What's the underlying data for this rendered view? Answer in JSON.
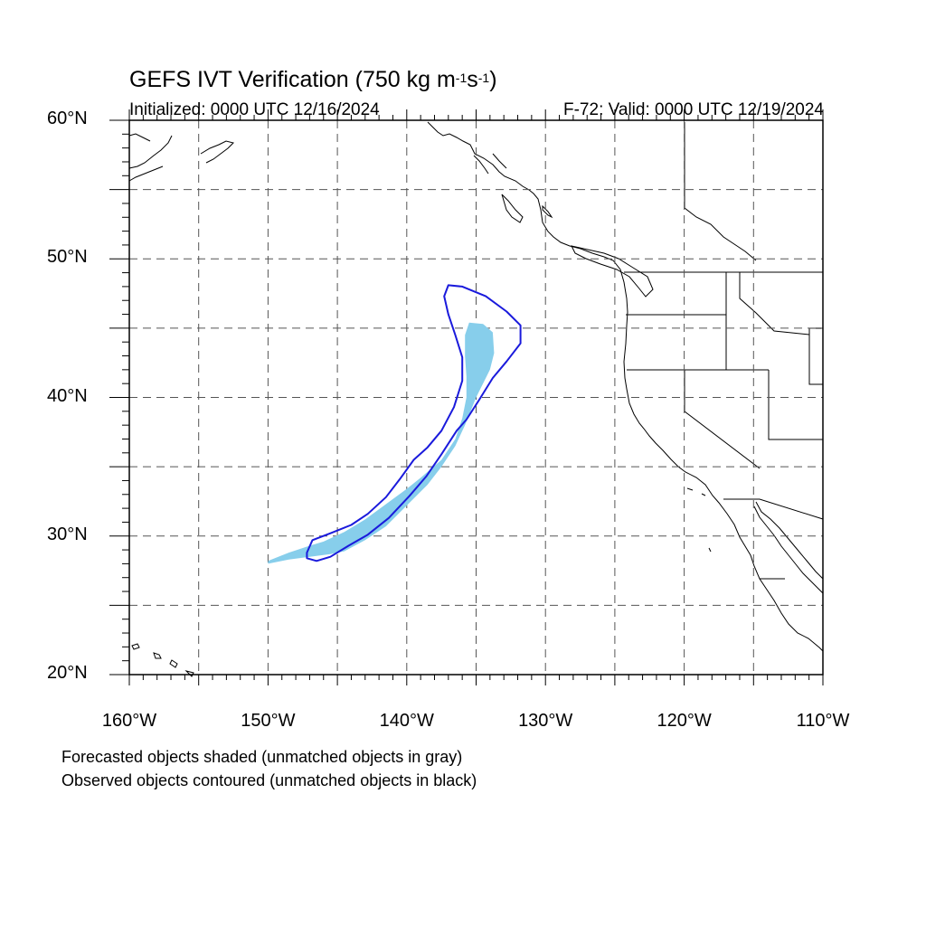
{
  "title": {
    "main": "GEFS IVT Verification (750 kg m",
    "sup1": "-1",
    "mid": "s",
    "sup2": "-1",
    "end": ")"
  },
  "subtitle": {
    "left": "Initialized: 0000 UTC 12/16/2024",
    "right": "F-72: Valid: 0000 UTC 12/19/2024"
  },
  "map": {
    "lon_range": [
      -160,
      -110
    ],
    "lat_range": [
      20,
      60
    ],
    "gridline_style": "dashed",
    "lat_labels": [
      {
        "lat": 60,
        "text": "60°N"
      },
      {
        "lat": 50,
        "text": "50°N"
      },
      {
        "lat": 40,
        "text": "40°N"
      },
      {
        "lat": 30,
        "text": "30°N"
      },
      {
        "lat": 20,
        "text": "20°N"
      }
    ],
    "lon_labels": [
      {
        "lon": -160,
        "text": "160°W"
      },
      {
        "lon": -150,
        "text": "150°W"
      },
      {
        "lon": -140,
        "text": "140°W"
      },
      {
        "lon": -130,
        "text": "130°W"
      },
      {
        "lon": -120,
        "text": "120°W"
      },
      {
        "lon": -110,
        "text": "110°W"
      }
    ],
    "colors": {
      "forecast_fill": "#87ceeb",
      "observed_contour": "#1a1adc",
      "coastline": "#000000"
    },
    "forecast_object": [
      [
        -150.0,
        28.2
      ],
      [
        -148.5,
        28.8
      ],
      [
        -147.0,
        29.3
      ],
      [
        -146.0,
        29.6
      ],
      [
        -144.5,
        30.3
      ],
      [
        -143.0,
        31.2
      ],
      [
        -141.5,
        32.3
      ],
      [
        -140.0,
        33.4
      ],
      [
        -139.0,
        34.2
      ],
      [
        -137.5,
        35.5
      ],
      [
        -136.5,
        37.0
      ],
      [
        -136.0,
        38.5
      ],
      [
        -135.7,
        40.0
      ],
      [
        -135.7,
        41.5
      ],
      [
        -135.8,
        43.0
      ],
      [
        -135.8,
        44.5
      ],
      [
        -135.5,
        45.4
      ],
      [
        -134.5,
        45.3
      ],
      [
        -133.8,
        44.7
      ],
      [
        -133.7,
        43.2
      ],
      [
        -134.0,
        42.0
      ],
      [
        -135.0,
        40.0
      ],
      [
        -135.8,
        38.0
      ],
      [
        -136.5,
        36.5
      ],
      [
        -137.5,
        35.0
      ],
      [
        -138.5,
        33.7
      ],
      [
        -140.0,
        32.2
      ],
      [
        -141.5,
        30.7
      ],
      [
        -143.0,
        29.7
      ],
      [
        -144.5,
        28.9
      ],
      [
        -145.5,
        28.7
      ],
      [
        -147.0,
        28.5
      ],
      [
        -148.5,
        28.3
      ],
      [
        -150.0,
        28.0
      ]
    ],
    "observed_object": [
      [
        -147.2,
        28.8
      ],
      [
        -146.8,
        29.7
      ],
      [
        -145.5,
        30.2
      ],
      [
        -144.0,
        30.8
      ],
      [
        -142.8,
        31.6
      ],
      [
        -141.5,
        32.8
      ],
      [
        -140.5,
        34.1
      ],
      [
        -139.5,
        35.5
      ],
      [
        -138.5,
        36.4
      ],
      [
        -137.5,
        37.6
      ],
      [
        -136.6,
        39.3
      ],
      [
        -136.0,
        41.2
      ],
      [
        -136.0,
        42.9
      ],
      [
        -136.5,
        44.5
      ],
      [
        -137.0,
        46.0
      ],
      [
        -137.3,
        47.3
      ],
      [
        -137.0,
        48.1
      ],
      [
        -136.0,
        48.0
      ],
      [
        -134.3,
        47.3
      ],
      [
        -132.8,
        46.2
      ],
      [
        -131.8,
        45.2
      ],
      [
        -131.8,
        43.9
      ],
      [
        -132.8,
        42.6
      ],
      [
        -133.8,
        41.4
      ],
      [
        -134.8,
        39.8
      ],
      [
        -135.7,
        38.4
      ],
      [
        -136.4,
        37.6
      ],
      [
        -137.5,
        35.9
      ],
      [
        -138.6,
        34.3
      ],
      [
        -139.8,
        32.9
      ],
      [
        -141.3,
        31.3
      ],
      [
        -142.8,
        30.1
      ],
      [
        -144.2,
        29.3
      ],
      [
        -145.5,
        28.5
      ],
      [
        -146.5,
        28.2
      ],
      [
        -147.2,
        28.4
      ]
    ]
  },
  "caption": {
    "line1": "Forecasted objects shaded (unmatched objects in gray)",
    "line2": "Observed objects contoured (unmatched objects in black)"
  }
}
